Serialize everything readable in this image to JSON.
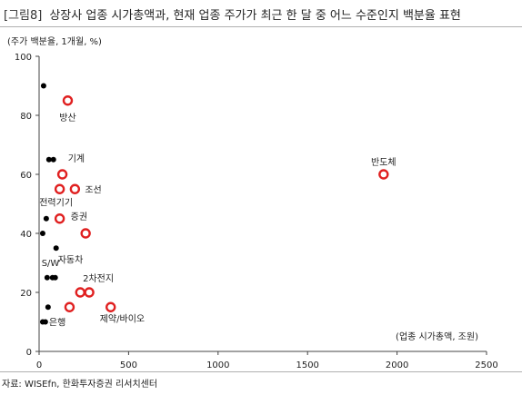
{
  "figure_label": "[그림8]",
  "title": "상장사 업종 시가총액과, 현재 업종 주가가 최근 한 달 중 어느 수준인지 백분율 표현",
  "source": "자료: WISEfn, 한화투자증권 리서치센터",
  "colors": {
    "highlight": "#e02020",
    "dot": "#000000",
    "axis": "#444444"
  },
  "chart_data": {
    "type": "scatter",
    "title": "상장사 업종 시가총액과, 현재 업종 주가가 최근 한 달 중 어느 수준인지 백분율 표현",
    "ylabel": "(주가 백분율, 1개월, %)",
    "xlabel": "(업종 시가총액, 조원)",
    "xlim": [
      0,
      2500
    ],
    "ylim": [
      0,
      100
    ],
    "x_ticks": [
      0,
      500,
      1000,
      1500,
      2000,
      2500
    ],
    "y_ticks": [
      0,
      20,
      40,
      60,
      80,
      100
    ],
    "grid": false,
    "series": [
      {
        "style": "open-red-circle",
        "points": [
          {
            "label": "방산",
            "x": 160,
            "y": 85
          },
          {
            "label": "반도체",
            "x": 1925,
            "y": 60
          },
          {
            "label": "",
            "x": 130,
            "y": 60
          },
          {
            "label": "",
            "x": 115,
            "y": 55
          },
          {
            "label": "조선",
            "x": 200,
            "y": 55
          },
          {
            "label": "증권",
            "x": 115,
            "y": 45
          },
          {
            "label": "",
            "x": 260,
            "y": 40
          },
          {
            "label": "",
            "x": 230,
            "y": 20
          },
          {
            "label": "2차전지",
            "x": 280,
            "y": 20
          },
          {
            "label": "",
            "x": 170,
            "y": 15
          },
          {
            "label": "제약/바이오",
            "x": 400,
            "y": 15
          }
        ]
      },
      {
        "style": "black-dot",
        "points": [
          {
            "x": 25,
            "y": 90
          },
          {
            "x": 55,
            "y": 65
          },
          {
            "x": 80,
            "y": 65
          },
          {
            "x": 40,
            "y": 45
          },
          {
            "x": 20,
            "y": 40
          },
          {
            "x": 95,
            "y": 35
          },
          {
            "x": 45,
            "y": 25
          },
          {
            "x": 75,
            "y": 25
          },
          {
            "x": 90,
            "y": 25
          },
          {
            "x": 50,
            "y": 15
          },
          {
            "x": 20,
            "y": 10
          },
          {
            "x": 35,
            "y": 10
          }
        ]
      }
    ],
    "annotations": [
      {
        "text": "방산",
        "x": 160,
        "y": 85
      },
      {
        "text": "기계",
        "x": 80,
        "y": 65
      },
      {
        "text": "반도체",
        "x": 1925,
        "y": 60
      },
      {
        "text": "조선",
        "x": 200,
        "y": 55
      },
      {
        "text": "전력기기",
        "x": 115,
        "y": 55
      },
      {
        "text": "증권",
        "x": 115,
        "y": 45
      },
      {
        "text": "자동차",
        "x": 95,
        "y": 35
      },
      {
        "text": "S/W",
        "x": 90,
        "y": 25
      },
      {
        "text": "2차전지",
        "x": 280,
        "y": 20
      },
      {
        "text": "제약/바이오",
        "x": 400,
        "y": 15
      },
      {
        "text": "은행",
        "x": 35,
        "y": 10
      }
    ]
  }
}
